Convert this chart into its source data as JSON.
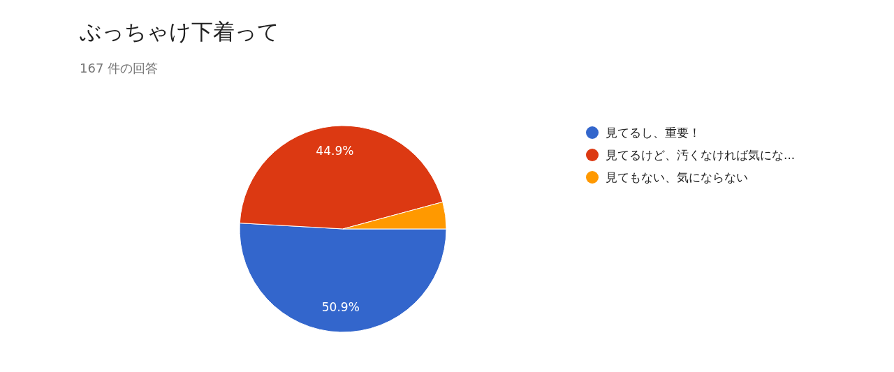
{
  "chart_data": {
    "type": "pie",
    "title": "ぶっちゃけ下着って",
    "subtitle": "167 件の回答",
    "categories": [
      "見てるし、重要！",
      "見てるけど、汚くなければ気にな...",
      "見てもない、気にならない"
    ],
    "values": [
      50.9,
      44.9,
      4.2
    ],
    "colors": [
      "#3366cc",
      "#dc3912",
      "#ff9900"
    ],
    "value_labels": [
      "50.9%",
      "44.9%",
      null
    ],
    "legend": "right"
  }
}
